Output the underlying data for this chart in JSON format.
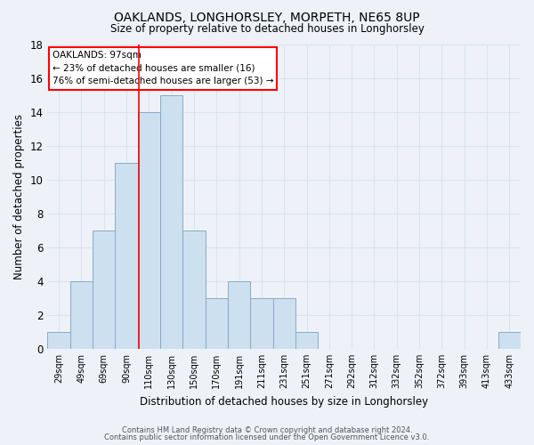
{
  "title": "OAKLANDS, LONGHORSLEY, MORPETH, NE65 8UP",
  "subtitle": "Size of property relative to detached houses in Longhorsley",
  "xlabel": "Distribution of detached houses by size in Longhorsley",
  "ylabel": "Number of detached properties",
  "footer1": "Contains HM Land Registry data © Crown copyright and database right 2024.",
  "footer2": "Contains public sector information licensed under the Open Government Licence v3.0.",
  "bin_labels": [
    "29sqm",
    "49sqm",
    "69sqm",
    "90sqm",
    "110sqm",
    "130sqm",
    "150sqm",
    "170sqm",
    "191sqm",
    "211sqm",
    "231sqm",
    "251sqm",
    "271sqm",
    "292sqm",
    "312sqm",
    "332sqm",
    "352sqm",
    "372sqm",
    "393sqm",
    "413sqm",
    "433sqm"
  ],
  "bar_heights": [
    1,
    4,
    7,
    11,
    14,
    15,
    7,
    3,
    4,
    3,
    3,
    1,
    0,
    0,
    0,
    0,
    0,
    0,
    0,
    0,
    1
  ],
  "bar_color": "#cce0f0",
  "bar_edge_color": "#88aac8",
  "grid_color": "#d8e4f0",
  "red_line_x": 3.55,
  "annotation_line1": "OAKLANDS: 97sqm",
  "annotation_line2": "← 23% of detached houses are smaller (16)",
  "annotation_line3": "76% of semi-detached houses are larger (53) →",
  "ylim": [
    0,
    18
  ],
  "yticks": [
    0,
    2,
    4,
    6,
    8,
    10,
    12,
    14,
    16,
    18
  ],
  "background_color": "#eef2f8",
  "plot_bg_color": "#eef2f8"
}
